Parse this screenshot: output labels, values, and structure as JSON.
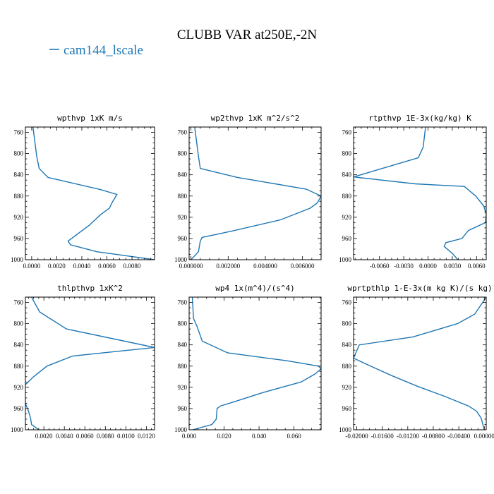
{
  "figure": {
    "title": "CLUBB VAR at250E,-2N",
    "legend": {
      "label": "cam144_lscale",
      "color": "#1f77b4"
    }
  },
  "chart_data": [
    {
      "type": "line",
      "title": "wpthvp  1xK m/s",
      "series": [
        {
          "name": "cam144_lscale",
          "color": "#1f77b4",
          "x": [
            0.0001,
            0.0004,
            0.0006,
            0.0013,
            0.0055,
            0.0068,
            0.0064,
            0.0062,
            0.0055,
            0.0046,
            0.0029,
            0.0031,
            0.0052,
            0.0098
          ],
          "y": [
            750,
            805,
            828,
            845,
            868,
            877,
            893,
            903,
            915,
            935,
            965,
            972,
            985,
            1000
          ]
        }
      ],
      "xlim": [
        -0.0005,
        0.0098
      ],
      "ylim": [
        1000,
        750
      ],
      "xticks": [
        0.0,
        0.002,
        0.004,
        0.006,
        0.008
      ],
      "xtick_labels": [
        "0.0000",
        "0.0020",
        "0.0040",
        "0.0060",
        "0.0080"
      ],
      "yticks": [
        760,
        800,
        840,
        880,
        920,
        960,
        1000
      ],
      "ytick_labels": [
        "760",
        "800",
        "840",
        "880",
        "920",
        "960",
        "1000"
      ]
    },
    {
      "type": "line",
      "title": "wp2thvp  1xK m^2/s^2",
      "series": [
        {
          "name": "cam144_lscale",
          "color": "#1f77b4",
          "x": [
            0.0002,
            0.0004,
            0.0005,
            0.0025,
            0.0062,
            0.007,
            0.0068,
            0.0064,
            0.0048,
            0.0022,
            0.0014,
            0.0006,
            0.0005,
            0.0004,
            0.0
          ],
          "y": [
            750,
            805,
            828,
            845,
            867,
            880,
            893,
            903,
            925,
            946,
            952,
            958,
            965,
            985,
            1000
          ]
        }
      ],
      "xlim": [
        -0.0001,
        0.007
      ],
      "ylim": [
        1000,
        750
      ],
      "xticks": [
        0.0,
        0.002,
        0.004,
        0.006
      ],
      "xtick_labels": [
        "0.000000",
        "0.002000",
        "0.004000",
        "0.006000"
      ],
      "yticks": [
        760,
        800,
        840,
        880,
        920,
        960,
        1000
      ],
      "ytick_labels": [
        "760",
        "800",
        "840",
        "880",
        "920",
        "960",
        "1000"
      ]
    },
    {
      "type": "line",
      "title": "rtpthvp  1E-3x(kg/kg) K",
      "series": [
        {
          "name": "cam144_lscale",
          "color": "#1f77b4",
          "x": [
            -0.0003,
            -0.0006,
            -0.0012,
            -0.0092,
            -0.0016,
            0.0045,
            0.0059,
            0.0069,
            0.0072,
            0.0071,
            0.005,
            0.0042,
            0.0022,
            0.002,
            0.003,
            0.0037
          ],
          "y": [
            750,
            788,
            808,
            844,
            857,
            862,
            880,
            899,
            915,
            930,
            945,
            960,
            968,
            975,
            988,
            1000
          ]
        }
      ],
      "xlim": [
        -0.0092,
        0.0072
      ],
      "ylim": [
        1000,
        750
      ],
      "xticks": [
        -0.006,
        -0.003,
        0.0,
        0.003,
        0.006
      ],
      "xtick_labels": [
        "-0.0060",
        "-0.0030",
        "0.0000",
        "0.0030",
        "0.0060"
      ],
      "yticks": [
        760,
        800,
        840,
        880,
        920,
        960,
        1000
      ],
      "ytick_labels": [
        "760",
        "800",
        "840",
        "880",
        "920",
        "960",
        "1000"
      ]
    },
    {
      "type": "line",
      "title": "thlpthvp  1xK^2",
      "series": [
        {
          "name": "cam144_lscale",
          "color": "#1f77b4",
          "x": [
            0.0008,
            0.0016,
            0.0042,
            0.0128,
            0.0048,
            0.0023,
            0.001,
            0.0001,
            0.0002,
            0.0005,
            0.0007,
            0.0008,
            0.0015
          ],
          "y": [
            750,
            778,
            810,
            845,
            861,
            880,
            900,
            917,
            950,
            965,
            978,
            990,
            1000
          ]
        }
      ],
      "xlim": [
        0.0002,
        0.0128
      ],
      "ylim": [
        1000,
        750
      ],
      "xticks": [
        0.002,
        0.004,
        0.006,
        0.008,
        0.01,
        0.012
      ],
      "xtick_labels": [
        "0.0020",
        "0.0040",
        "0.0060",
        "0.0080",
        "0.0100",
        "0.0120"
      ],
      "yticks": [
        760,
        800,
        840,
        880,
        920,
        960,
        1000
      ],
      "ytick_labels": [
        "760",
        "800",
        "840",
        "880",
        "920",
        "960",
        "1000"
      ]
    },
    {
      "type": "line",
      "title": "wp4  1x(m^4)/(s^4)",
      "series": [
        {
          "name": "cam144_lscale",
          "color": "#1f77b4",
          "x": [
            0.0018,
            0.0025,
            0.0045,
            0.0075,
            0.022,
            0.056,
            0.074,
            0.0755,
            0.072,
            0.064,
            0.042,
            0.025,
            0.018,
            0.016,
            0.0155,
            0.013,
            0.002
          ],
          "y": [
            750,
            790,
            805,
            833,
            855,
            870,
            880,
            885,
            895,
            910,
            930,
            948,
            955,
            960,
            980,
            990,
            1000
          ]
        }
      ],
      "xlim": [
        0.0,
        0.0755
      ],
      "ylim": [
        1000,
        750
      ],
      "xticks": [
        0.0,
        0.02,
        0.04,
        0.06
      ],
      "xtick_labels": [
        "0.000",
        "0.020",
        "0.040",
        "0.060"
      ],
      "yticks": [
        760,
        800,
        840,
        880,
        920,
        960,
        1000
      ],
      "ytick_labels": [
        "760",
        "800",
        "840",
        "880",
        "920",
        "960",
        "1000"
      ]
    },
    {
      "type": "line",
      "title": "wprtpthlp  1-E-3x(m kg K)/(s kg)",
      "series": [
        {
          "name": "cam144_lscale",
          "color": "#1f77b4",
          "x": [
            0.0003,
            -0.0015,
            -0.0042,
            -0.0112,
            -0.0196,
            -0.0205,
            -0.0182,
            -0.0145,
            -0.0105,
            -0.006,
            -0.0025,
            -0.0012,
            -0.0005,
            0.0
          ],
          "y": [
            750,
            782,
            800,
            825,
            840,
            865,
            878,
            898,
            918,
            938,
            955,
            965,
            978,
            1000
          ]
        }
      ],
      "xlim": [
        -0.0205,
        0.0003
      ],
      "ylim": [
        1000,
        750
      ],
      "xticks": [
        -0.02,
        -0.016,
        -0.012,
        -0.008,
        -0.004,
        0.0
      ],
      "xtick_labels": [
        "-0.02000",
        "-0.01600",
        "-0.01200",
        "-0.00800",
        "-0.00400",
        "0.00000"
      ],
      "yticks": [
        760,
        800,
        840,
        880,
        920,
        960,
        1000
      ],
      "ytick_labels": [
        "760",
        "800",
        "840",
        "880",
        "920",
        "960",
        "1000"
      ]
    }
  ]
}
